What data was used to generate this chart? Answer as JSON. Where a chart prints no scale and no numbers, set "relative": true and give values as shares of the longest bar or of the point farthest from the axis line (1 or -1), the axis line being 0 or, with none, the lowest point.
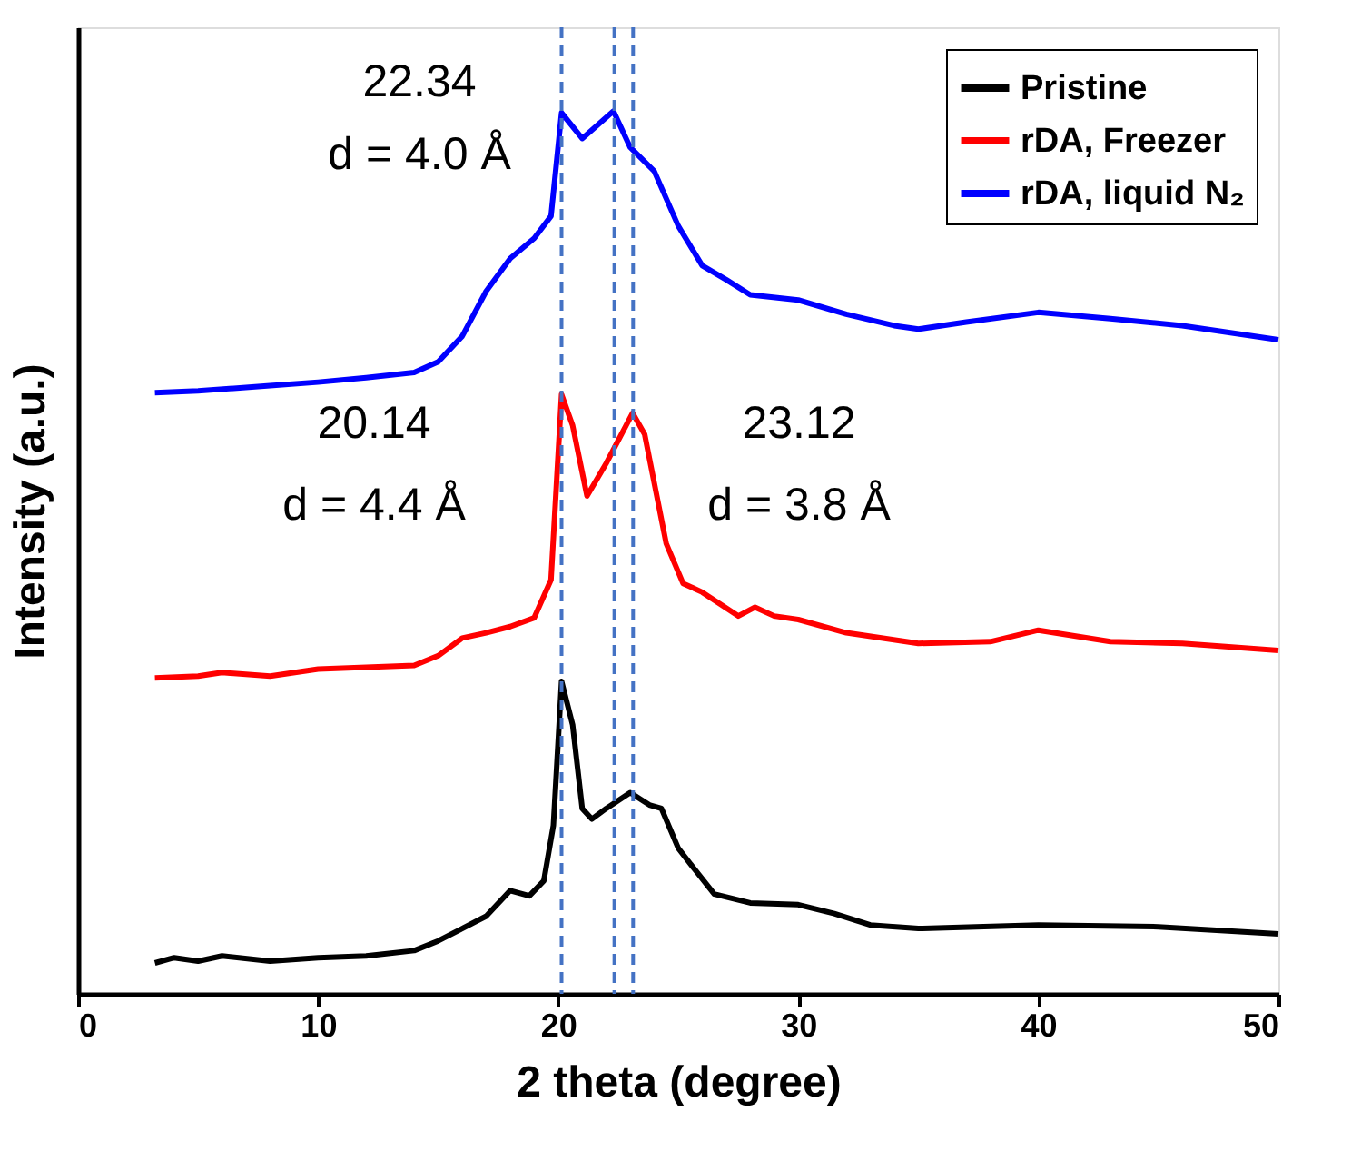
{
  "chart_data": {
    "type": "line",
    "relative": true,
    "xlabel": "2 theta (degree)",
    "ylabel": "Intensity (a.u.)",
    "xlim": [
      0,
      50
    ],
    "xticks": [
      0,
      10,
      20,
      30,
      40,
      50
    ],
    "tick_labels": "x",
    "grid": false,
    "legend": "top right",
    "line_style": "solid",
    "marker": "none",
    "series": [
      {
        "name": "Pristine",
        "color": "#000000",
        "x": [
          3.2,
          4,
          5,
          6,
          8,
          10,
          12,
          14,
          15,
          16,
          17,
          18,
          18.8,
          19.4,
          19.8,
          20.14,
          20.6,
          21.0,
          21.4,
          22,
          23,
          23.8,
          24.3,
          25,
          25.6,
          26.5,
          28,
          30,
          31.5,
          33,
          35,
          40,
          45,
          50
        ],
        "values": [
          0.035,
          0.041,
          0.037,
          0.043,
          0.037,
          0.041,
          0.043,
          0.049,
          0.06,
          0.074,
          0.088,
          0.117,
          0.111,
          0.128,
          0.191,
          0.354,
          0.305,
          0.21,
          0.198,
          0.21,
          0.228,
          0.214,
          0.21,
          0.165,
          0.144,
          0.113,
          0.103,
          0.101,
          0.091,
          0.078,
          0.074,
          0.078,
          0.076,
          0.068
        ]
      },
      {
        "name": "rDA, Freezer",
        "color": "#ff0000",
        "x": [
          3.2,
          5,
          6,
          8,
          10,
          12,
          14,
          15,
          16,
          17,
          18,
          19,
          19.7,
          20.14,
          20.6,
          21.2,
          22,
          23.1,
          23.6,
          24.5,
          25.2,
          26,
          27.5,
          28.2,
          29,
          30,
          32,
          35,
          38,
          40,
          43,
          46,
          50
        ],
        "values": [
          0.358,
          0.36,
          0.364,
          0.36,
          0.368,
          0.37,
          0.372,
          0.383,
          0.403,
          0.409,
          0.416,
          0.426,
          0.469,
          0.679,
          0.644,
          0.564,
          0.601,
          0.658,
          0.634,
          0.51,
          0.465,
          0.455,
          0.428,
          0.438,
          0.428,
          0.424,
          0.409,
          0.397,
          0.399,
          0.412,
          0.399,
          0.397,
          0.389
        ]
      },
      {
        "name": "rDA, liquid N₂",
        "color": "#0000ff",
        "x": [
          3.2,
          5,
          8,
          10,
          12,
          14,
          15,
          16,
          17,
          18,
          19,
          19.7,
          20.14,
          21,
          22.3,
          23,
          24,
          25,
          26,
          27,
          28,
          30,
          32,
          34,
          35,
          37,
          40,
          43,
          46,
          50
        ],
        "values": [
          0.681,
          0.683,
          0.689,
          0.693,
          0.698,
          0.704,
          0.716,
          0.745,
          0.796,
          0.833,
          0.856,
          0.881,
          0.998,
          0.969,
          1.0,
          0.959,
          0.932,
          0.87,
          0.825,
          0.809,
          0.792,
          0.786,
          0.77,
          0.757,
          0.753,
          0.761,
          0.772,
          0.765,
          0.757,
          0.741
        ]
      }
    ],
    "ref_lines": [
      {
        "axis": "x",
        "value": 20.14,
        "color": "#4472c4",
        "line_style": "dashed"
      },
      {
        "axis": "x",
        "value": 22.34,
        "color": "#4472c4",
        "line_style": "dashed"
      },
      {
        "axis": "x",
        "value": 23.12,
        "color": "#4472c4",
        "line_style": "dashed"
      }
    ],
    "annotations": [
      "22.34",
      "d = 4.0 Å",
      "20.14",
      "d = 4.4 Å",
      "23.12",
      "d = 3.8 Å"
    ]
  }
}
